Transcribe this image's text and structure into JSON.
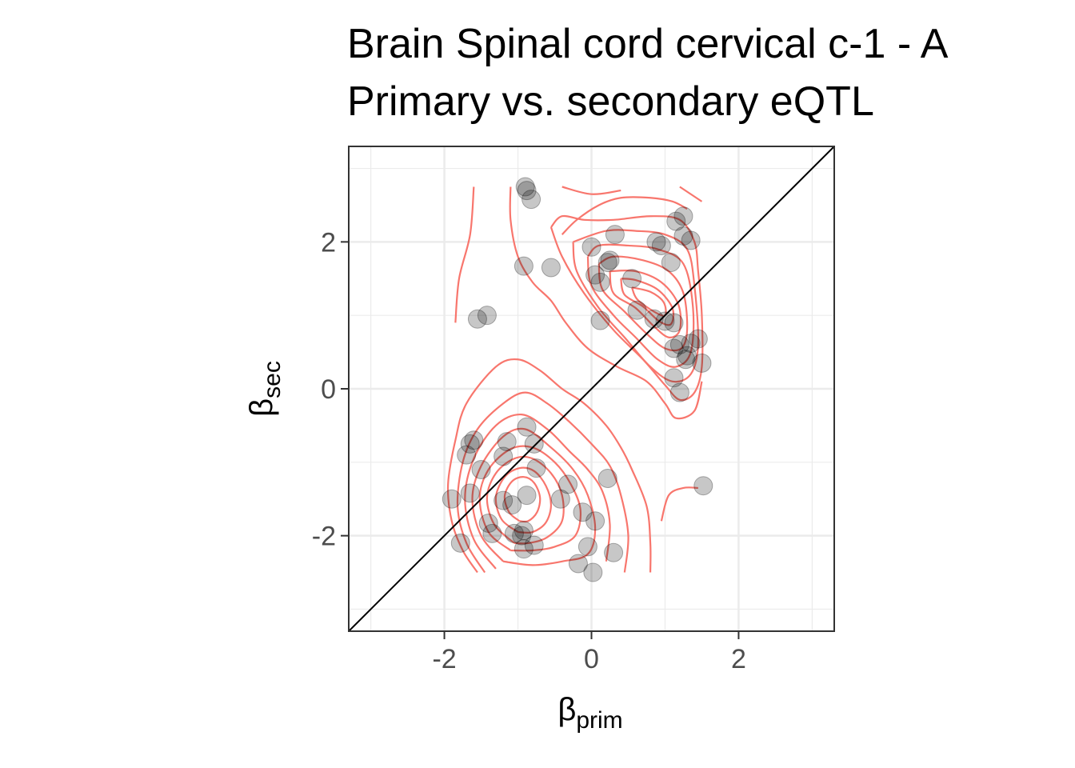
{
  "chart_data": {
    "type": "scatter",
    "title_line1": "Brain Spinal cord cervical c-1 - A",
    "title_line2": "Primary vs. secondary eQTL",
    "xlabel": {
      "symbol": "β",
      "subscript": "prim"
    },
    "ylabel": {
      "symbol": "β",
      "subscript": "sec"
    },
    "xlim": [
      -3.3,
      3.3
    ],
    "ylim": [
      -3.3,
      3.3
    ],
    "x_ticks": [
      -2,
      0,
      2
    ],
    "y_ticks": [
      -2,
      0,
      2
    ],
    "x_tick_labels": [
      "-2",
      "0",
      "2"
    ],
    "y_tick_labels": [
      "-2",
      "0",
      "2"
    ],
    "grid": true,
    "reference_line": "y = x",
    "colors": {
      "points": "#000000",
      "contour": "#f8766d",
      "diagonal": "#000000",
      "grid": "#ebebeb"
    },
    "points": [
      [
        -0.9,
        2.75
      ],
      [
        -0.88,
        2.7
      ],
      [
        -0.82,
        2.58
      ],
      [
        -0.92,
        1.67
      ],
      [
        -0.55,
        1.65
      ],
      [
        0.0,
        1.93
      ],
      [
        0.32,
        2.1
      ],
      [
        0.25,
        1.75
      ],
      [
        0.22,
        1.72
      ],
      [
        0.05,
        1.55
      ],
      [
        0.12,
        1.45
      ],
      [
        0.55,
        1.5
      ],
      [
        0.88,
        2.0
      ],
      [
        0.95,
        1.95
      ],
      [
        1.08,
        1.72
      ],
      [
        1.15,
        2.28
      ],
      [
        1.25,
        2.35
      ],
      [
        1.25,
        2.08
      ],
      [
        1.35,
        2.02
      ],
      [
        -1.55,
        0.95
      ],
      [
        -1.42,
        1.0
      ],
      [
        0.12,
        0.93
      ],
      [
        0.62,
        1.07
      ],
      [
        0.85,
        0.95
      ],
      [
        1.0,
        0.92
      ],
      [
        1.12,
        0.9
      ],
      [
        1.12,
        0.55
      ],
      [
        1.2,
        0.6
      ],
      [
        1.3,
        0.45
      ],
      [
        1.28,
        0.4
      ],
      [
        1.35,
        0.62
      ],
      [
        1.45,
        0.68
      ],
      [
        1.5,
        0.35
      ],
      [
        1.12,
        0.15
      ],
      [
        1.2,
        -0.05
      ],
      [
        -0.88,
        -0.52
      ],
      [
        -1.6,
        -0.7
      ],
      [
        -1.65,
        -0.75
      ],
      [
        -1.15,
        -0.72
      ],
      [
        -0.78,
        -0.75
      ],
      [
        -1.7,
        -0.9
      ],
      [
        -1.2,
        -0.92
      ],
      [
        -1.5,
        -1.1
      ],
      [
        -0.75,
        -1.08
      ],
      [
        -1.65,
        -1.42
      ],
      [
        -1.9,
        -1.5
      ],
      [
        -1.2,
        -1.52
      ],
      [
        -1.08,
        -1.58
      ],
      [
        -0.88,
        -1.45
      ],
      [
        -0.42,
        -1.5
      ],
      [
        -0.32,
        -1.3
      ],
      [
        0.22,
        -1.22
      ],
      [
        -1.4,
        -1.83
      ],
      [
        -1.35,
        -1.97
      ],
      [
        -1.05,
        -1.97
      ],
      [
        -0.95,
        -2.0
      ],
      [
        -0.92,
        -1.93
      ],
      [
        -0.12,
        -1.68
      ],
      [
        0.05,
        -1.8
      ],
      [
        -1.78,
        -2.1
      ],
      [
        -0.92,
        -2.18
      ],
      [
        -0.78,
        -2.13
      ],
      [
        -0.05,
        -2.15
      ],
      [
        0.3,
        -2.23
      ],
      [
        -0.18,
        -2.38
      ],
      [
        0.02,
        -2.5
      ],
      [
        1.52,
        -1.32
      ]
    ],
    "contours": [
      [
        [
          -1.55,
          -2.5
        ],
        [
          -1.75,
          -2.2
        ],
        [
          -1.9,
          -1.8
        ],
        [
          -1.95,
          -1.3
        ],
        [
          -1.85,
          -0.7
        ],
        [
          -1.7,
          -0.2
        ],
        [
          -1.3,
          0.3
        ],
        [
          -1.0,
          0.4
        ],
        [
          -0.7,
          0.25
        ],
        [
          -0.4,
          0.0
        ],
        [
          -0.1,
          -0.2
        ],
        [
          0.2,
          -0.5
        ],
        [
          0.4,
          -0.8
        ],
        [
          0.55,
          -1.1
        ],
        [
          0.75,
          -1.6
        ],
        [
          0.8,
          -2.1
        ],
        [
          0.8,
          -2.5
        ]
      ],
      [
        [
          -1.45,
          -2.5
        ],
        [
          -1.7,
          -2.1
        ],
        [
          -1.82,
          -1.6
        ],
        [
          -1.75,
          -1.0
        ],
        [
          -1.55,
          -0.55
        ],
        [
          -1.2,
          -0.2
        ],
        [
          -0.9,
          -0.05
        ],
        [
          -0.6,
          -0.2
        ],
        [
          -0.3,
          -0.45
        ],
        [
          0.0,
          -0.75
        ],
        [
          0.25,
          -1.05
        ],
        [
          0.4,
          -1.45
        ],
        [
          0.5,
          -2.0
        ],
        [
          0.45,
          -2.5
        ]
      ],
      [
        [
          -1.3,
          -2.45
        ],
        [
          -1.6,
          -2.05
        ],
        [
          -1.72,
          -1.5
        ],
        [
          -1.6,
          -0.95
        ],
        [
          -1.3,
          -0.5
        ],
        [
          -0.95,
          -0.35
        ],
        [
          -0.6,
          -0.55
        ],
        [
          -0.3,
          -0.85
        ],
        [
          -0.05,
          -1.1
        ],
        [
          0.15,
          -1.4
        ],
        [
          0.25,
          -1.85
        ],
        [
          0.2,
          -2.35
        ]
      ],
      [
        [
          -1.2,
          -2.35
        ],
        [
          -1.5,
          -2.0
        ],
        [
          -1.62,
          -1.5
        ],
        [
          -1.5,
          -1.05
        ],
        [
          -1.2,
          -0.65
        ],
        [
          -0.9,
          -0.55
        ],
        [
          -0.55,
          -0.8
        ],
        [
          -0.25,
          -1.1
        ],
        [
          -0.05,
          -1.45
        ],
        [
          0.05,
          -1.9
        ],
        [
          -0.05,
          -2.25
        ],
        [
          -0.4,
          -2.35
        ],
        [
          -0.8,
          -2.4
        ],
        [
          -1.2,
          -2.35
        ]
      ],
      [
        [
          -1.1,
          -2.2
        ],
        [
          -1.4,
          -1.95
        ],
        [
          -1.52,
          -1.5
        ],
        [
          -1.4,
          -1.1
        ],
        [
          -1.1,
          -0.82
        ],
        [
          -0.8,
          -0.8
        ],
        [
          -0.5,
          -1.0
        ],
        [
          -0.28,
          -1.3
        ],
        [
          -0.15,
          -1.65
        ],
        [
          -0.22,
          -2.0
        ],
        [
          -0.5,
          -2.15
        ],
        [
          -0.8,
          -2.2
        ],
        [
          -1.1,
          -2.2
        ]
      ],
      [
        [
          -1.05,
          -2.1
        ],
        [
          -1.32,
          -1.85
        ],
        [
          -1.42,
          -1.48
        ],
        [
          -1.3,
          -1.15
        ],
        [
          -1.05,
          -0.95
        ],
        [
          -0.8,
          -0.95
        ],
        [
          -0.55,
          -1.15
        ],
        [
          -0.4,
          -1.45
        ],
        [
          -0.4,
          -1.8
        ],
        [
          -0.6,
          -2.02
        ],
        [
          -0.85,
          -2.1
        ],
        [
          -1.05,
          -2.1
        ]
      ],
      [
        [
          -1.0,
          -1.95
        ],
        [
          -1.22,
          -1.78
        ],
        [
          -1.3,
          -1.48
        ],
        [
          -1.18,
          -1.2
        ],
        [
          -0.98,
          -1.08
        ],
        [
          -0.78,
          -1.12
        ],
        [
          -0.62,
          -1.32
        ],
        [
          -0.55,
          -1.58
        ],
        [
          -0.62,
          -1.82
        ],
        [
          -0.8,
          -1.95
        ],
        [
          -1.0,
          -1.95
        ]
      ],
      [
        [
          -0.98,
          -1.8
        ],
        [
          -1.12,
          -1.68
        ],
        [
          -1.18,
          -1.46
        ],
        [
          -1.08,
          -1.26
        ],
        [
          -0.92,
          -1.2
        ],
        [
          -0.78,
          -1.28
        ],
        [
          -0.7,
          -1.48
        ],
        [
          -0.74,
          -1.68
        ],
        [
          -0.86,
          -1.8
        ],
        [
          -0.98,
          -1.8
        ]
      ],
      [
        [
          -1.85,
          0.9
        ],
        [
          -1.8,
          1.5
        ],
        [
          -1.65,
          2.1
        ],
        [
          -1.6,
          2.75
        ]
      ],
      [
        [
          -1.1,
          2.75
        ],
        [
          -1.1,
          2.3
        ],
        [
          -1.0,
          1.8
        ],
        [
          -0.8,
          1.45
        ],
        [
          -0.55,
          1.2
        ],
        [
          -0.35,
          0.9
        ],
        [
          -0.05,
          0.55
        ],
        [
          0.35,
          0.3
        ],
        [
          0.75,
          0.1
        ],
        [
          1.0,
          -0.2
        ],
        [
          1.15,
          -0.4
        ],
        [
          1.4,
          -0.3
        ],
        [
          1.5,
          0.1
        ]
      ],
      [
        [
          -0.4,
          2.1
        ],
        [
          -0.2,
          2.3
        ],
        [
          0.1,
          2.5
        ],
        [
          0.4,
          2.6
        ],
        [
          0.8,
          2.6
        ],
        [
          1.1,
          2.55
        ],
        [
          1.3,
          2.45
        ]
      ],
      [
        [
          -0.4,
          2.75
        ],
        [
          0.0,
          2.65
        ],
        [
          0.4,
          2.7
        ]
      ],
      [
        [
          1.2,
          2.75
        ],
        [
          1.5,
          2.55
        ]
      ],
      [
        [
          -0.55,
          2.2
        ],
        [
          -0.4,
          1.8
        ],
        [
          -0.1,
          1.3
        ],
        [
          0.3,
          0.8
        ],
        [
          0.7,
          0.4
        ],
        [
          1.0,
          0.05
        ],
        [
          1.2,
          -0.15
        ],
        [
          1.4,
          -0.05
        ],
        [
          1.5,
          0.3
        ],
        [
          1.5,
          1.0
        ],
        [
          1.45,
          1.6
        ],
        [
          1.4,
          2.0
        ],
        [
          1.2,
          2.3
        ],
        [
          0.8,
          2.35
        ],
        [
          0.3,
          2.3
        ],
        [
          -0.1,
          2.3
        ],
        [
          -0.4,
          2.35
        ],
        [
          -0.55,
          2.2
        ]
      ],
      [
        [
          -0.25,
          2.0
        ],
        [
          -0.2,
          1.6
        ],
        [
          0.1,
          1.1
        ],
        [
          0.45,
          0.7
        ],
        [
          0.8,
          0.3
        ],
        [
          1.1,
          0.1
        ],
        [
          1.35,
          0.2
        ],
        [
          1.45,
          0.6
        ],
        [
          1.4,
          1.4
        ],
        [
          1.3,
          1.9
        ],
        [
          1.0,
          2.1
        ],
        [
          0.6,
          2.15
        ],
        [
          0.2,
          2.15
        ],
        [
          -0.25,
          2.0
        ]
      ],
      [
        [
          -0.05,
          1.8
        ],
        [
          0.0,
          1.4
        ],
        [
          0.3,
          1.0
        ],
        [
          0.6,
          0.7
        ],
        [
          0.9,
          0.4
        ],
        [
          1.15,
          0.3
        ],
        [
          1.35,
          0.5
        ],
        [
          1.38,
          1.1
        ],
        [
          1.25,
          1.7
        ],
        [
          0.9,
          1.9
        ],
        [
          0.5,
          1.95
        ],
        [
          0.1,
          1.95
        ],
        [
          -0.05,
          1.8
        ]
      ],
      [
        [
          0.1,
          1.7
        ],
        [
          0.15,
          1.35
        ],
        [
          0.45,
          1.05
        ],
        [
          0.75,
          0.75
        ],
        [
          1.0,
          0.55
        ],
        [
          1.22,
          0.55
        ],
        [
          1.3,
          0.8
        ],
        [
          1.25,
          1.3
        ],
        [
          1.05,
          1.6
        ],
        [
          0.7,
          1.75
        ],
        [
          0.3,
          1.8
        ],
        [
          0.1,
          1.7
        ]
      ],
      [
        [
          0.25,
          1.6
        ],
        [
          0.3,
          1.3
        ],
        [
          0.6,
          1.1
        ],
        [
          0.85,
          0.85
        ],
        [
          1.05,
          0.7
        ],
        [
          1.2,
          0.8
        ],
        [
          1.18,
          1.15
        ],
        [
          0.95,
          1.45
        ],
        [
          0.6,
          1.6
        ],
        [
          0.25,
          1.6
        ]
      ],
      [
        [
          0.4,
          1.5
        ],
        [
          0.45,
          1.28
        ],
        [
          0.7,
          1.12
        ],
        [
          0.92,
          0.92
        ],
        [
          1.08,
          0.88
        ],
        [
          1.1,
          1.1
        ],
        [
          0.9,
          1.35
        ],
        [
          0.6,
          1.48
        ],
        [
          0.4,
          1.5
        ]
      ],
      [
        [
          0.55,
          1.38
        ],
        [
          0.62,
          1.22
        ],
        [
          0.85,
          1.05
        ],
        [
          1.0,
          1.0
        ],
        [
          0.98,
          1.18
        ],
        [
          0.8,
          1.32
        ],
        [
          0.55,
          1.38
        ]
      ],
      [
        [
          0.95,
          -1.8
        ],
        [
          1.05,
          -1.45
        ],
        [
          1.25,
          -1.35
        ],
        [
          1.45,
          -1.35
        ]
      ]
    ]
  }
}
